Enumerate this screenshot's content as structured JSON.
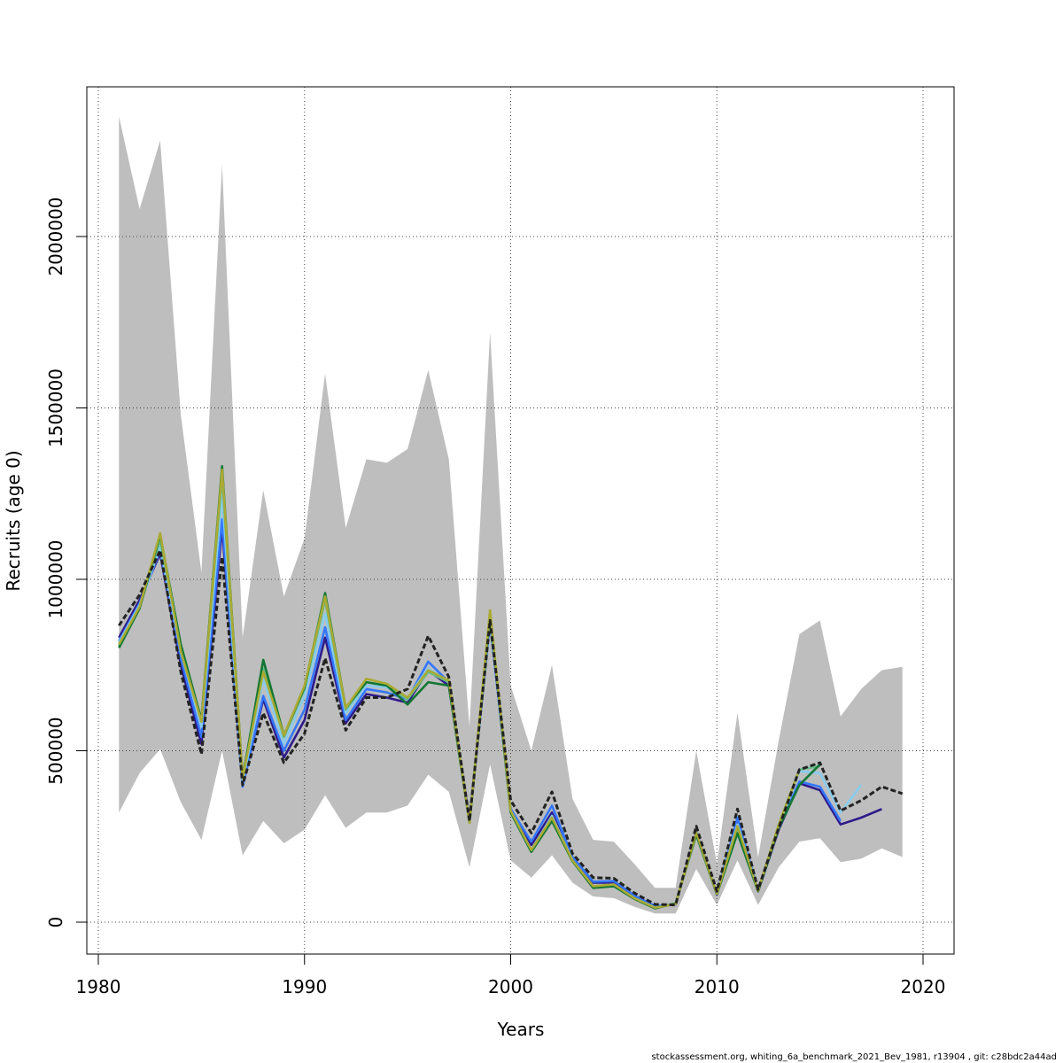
{
  "chart_data": {
    "type": "line",
    "title": "",
    "xlabel": "Years",
    "ylabel": "Recruits (age 0)",
    "xlim": [
      1980,
      2020
    ],
    "ylim": [
      -100000,
      2440000
    ],
    "x_ticks": [
      1980,
      1990,
      2000,
      2010,
      2020
    ],
    "y_ticks": [
      0,
      500000,
      1000000,
      1500000,
      2000000
    ],
    "x_tick_labels": [
      "1980",
      "1990",
      "2000",
      "2010",
      "2020"
    ],
    "y_tick_labels": [
      "0",
      "500000",
      "1000000",
      "1500000",
      "2000000"
    ],
    "grid": true,
    "footer": "stockassessment.org, whiting_6a_benchmark_2021_Bev_1981, r13904 , git: c28bdc2a44ad",
    "x": [
      1981,
      1982,
      1983,
      1984,
      1985,
      1986,
      1987,
      1988,
      1989,
      1990,
      1991,
      1992,
      1993,
      1994,
      1995,
      1996,
      1997,
      1998,
      1999,
      2000,
      2001,
      2002,
      2003,
      2004,
      2005,
      2006,
      2007,
      2008,
      2009,
      2010,
      2011,
      2012,
      2013,
      2014,
      2015,
      2016,
      2017,
      2018,
      2019
    ],
    "ci_upper": [
      2350000,
      2080000,
      2280000,
      1480000,
      1020000,
      2210000,
      830000,
      1260000,
      950000,
      1120000,
      1600000,
      1150000,
      1350000,
      1340000,
      1380000,
      1610000,
      1350000,
      570000,
      1720000,
      690000,
      500000,
      750000,
      360000,
      240000,
      235000,
      170000,
      100000,
      100000,
      500000,
      170000,
      610000,
      190000,
      530000,
      840000,
      880000,
      600000,
      680000,
      735000,
      745000
    ],
    "ci_lower": [
      320000,
      435000,
      505000,
      350000,
      240000,
      500000,
      195000,
      295000,
      230000,
      270000,
      370000,
      275000,
      320000,
      320000,
      340000,
      430000,
      380000,
      160000,
      460000,
      180000,
      130000,
      195000,
      115000,
      75000,
      70000,
      45000,
      25000,
      25000,
      155000,
      50000,
      180000,
      50000,
      160000,
      235000,
      245000,
      175000,
      185000,
      215000,
      190000
    ],
    "series": [
      {
        "name": "",
        "color": "#222222",
        "dashed": true,
        "values": [
          865000,
          955000,
          1085000,
          730000,
          490000,
          1065000,
          400000,
          610000,
          465000,
          550000,
          770000,
          560000,
          655000,
          655000,
          680000,
          835000,
          715000,
          295000,
          880000,
          355000,
          260000,
          380000,
          200000,
          130000,
          128000,
          85000,
          52000,
          50000,
          280000,
          90000,
          330000,
          95000,
          275000,
          445000,
          465000,
          325000,
          355000,
          395000,
          375000
        ]
      },
      {
        "name": "",
        "color": "#2e1a8a",
        "values": [
          830000,
          940000,
          1075000,
          750000,
          520000,
          1150000,
          400000,
          650000,
          480000,
          590000,
          830000,
          580000,
          665000,
          655000,
          640000,
          735000,
          690000,
          300000,
          880000,
          330000,
          225000,
          320000,
          185000,
          115000,
          115000,
          75000,
          45000,
          52000,
          262000,
          80000,
          300000,
          90000,
          270000,
          405000,
          385000,
          285000,
          305000,
          330000,
          null
        ]
      },
      {
        "name": "",
        "color": "#3377ff",
        "values": [
          820000,
          930000,
          1085000,
          770000,
          540000,
          1175000,
          395000,
          660000,
          500000,
          620000,
          860000,
          590000,
          680000,
          670000,
          650000,
          760000,
          700000,
          295000,
          875000,
          330000,
          235000,
          340000,
          190000,
          118000,
          120000,
          78000,
          47000,
          52000,
          265000,
          83000,
          305000,
          92000,
          275000,
          410000,
          395000,
          295000,
          null,
          null,
          null
        ]
      },
      {
        "name": "",
        "color": "#88ccee",
        "values": [
          815000,
          925000,
          1095000,
          790000,
          570000,
          1250000,
          410000,
          710000,
          520000,
          660000,
          900000,
          610000,
          690000,
          685000,
          655000,
          740000,
          700000,
          295000,
          890000,
          325000,
          210000,
          310000,
          180000,
          105000,
          110000,
          70000,
          42000,
          53000,
          262000,
          82000,
          285000,
          92000,
          280000,
          440000,
          435000,
          320000,
          400000,
          null,
          null
        ]
      },
      {
        "name": "",
        "color": "#66bb88",
        "values": [
          805000,
          920000,
          1115000,
          810000,
          585000,
          1300000,
          420000,
          740000,
          540000,
          680000,
          940000,
          620000,
          700000,
          690000,
          650000,
          730000,
          700000,
          290000,
          900000,
          322000,
          205000,
          300000,
          178000,
          103000,
          108000,
          69000,
          42000,
          53000,
          260000,
          83000,
          275000,
          92000,
          285000,
          445000,
          455000,
          null,
          null,
          null,
          null
        ]
      },
      {
        "name": "",
        "color": "#117733",
        "values": [
          800000,
          915000,
          1130000,
          810000,
          590000,
          1330000,
          420000,
          765000,
          545000,
          685000,
          960000,
          625000,
          700000,
          690000,
          635000,
          700000,
          690000,
          290000,
          900000,
          320000,
          205000,
          295000,
          178000,
          100000,
          105000,
          68000,
          40000,
          55000,
          255000,
          82000,
          260000,
          90000,
          275000,
          400000,
          460000,
          null,
          null,
          null,
          null
        ]
      },
      {
        "name": "",
        "color": "#aaaa33",
        "values": [
          810000,
          920000,
          1135000,
          790000,
          585000,
          1320000,
          420000,
          730000,
          545000,
          690000,
          950000,
          625000,
          710000,
          695000,
          655000,
          735000,
          705000,
          290000,
          910000,
          325000,
          210000,
          305000,
          180000,
          105000,
          110000,
          70000,
          42000,
          53000,
          262000,
          83000,
          280000,
          92000,
          285000,
          445000,
          null,
          null,
          null,
          null,
          null
        ]
      }
    ]
  }
}
